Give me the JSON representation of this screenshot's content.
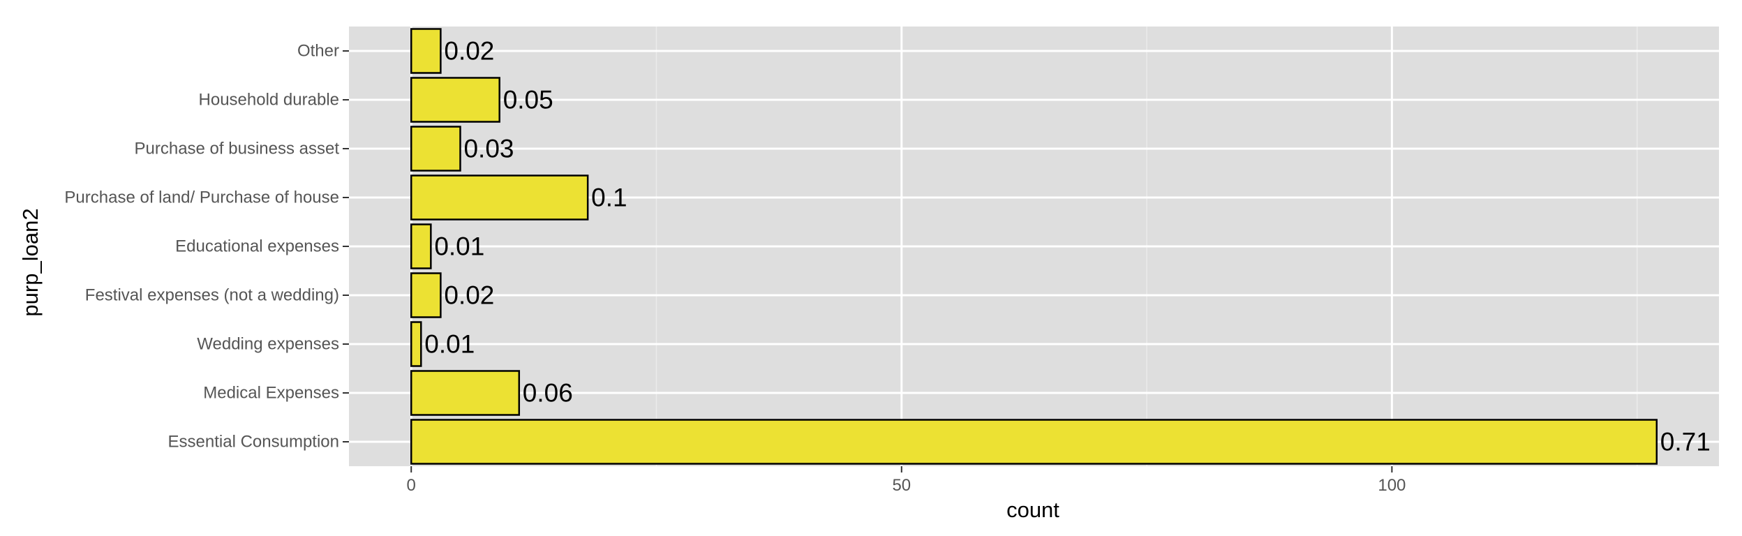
{
  "chart_data": {
    "type": "bar",
    "orientation": "horizontal",
    "categories": [
      "Essential Consumption",
      "Medical Expenses",
      "Wedding expenses",
      "Festival expenses (not a wedding)",
      "Educational expenses",
      "Purchase of land/ Purchase of house",
      "Purchase of business asset",
      "Household durable",
      "Other"
    ],
    "values": [
      127,
      11,
      1,
      3,
      2,
      18,
      5,
      9,
      3
    ],
    "data_labels": [
      "0.71",
      "0.06",
      "0.01",
      "0.02",
      "0.01",
      "0.1",
      "0.03",
      "0.05",
      "0.02"
    ],
    "xlabel": "count",
    "ylabel": "purp_loan2",
    "xlim": [
      -6.35,
      133.35
    ],
    "x_ticks": [
      0,
      50,
      100
    ],
    "x_tick_labels": [
      "0",
      "50",
      "100"
    ],
    "grid": true,
    "colors": {
      "bar_fill": "#ECE133",
      "bar_stroke": "#000000",
      "panel_background": "#DEDEDE",
      "grid_major": "#FFFFFF",
      "grid_minor": "#EBEBEB"
    }
  }
}
